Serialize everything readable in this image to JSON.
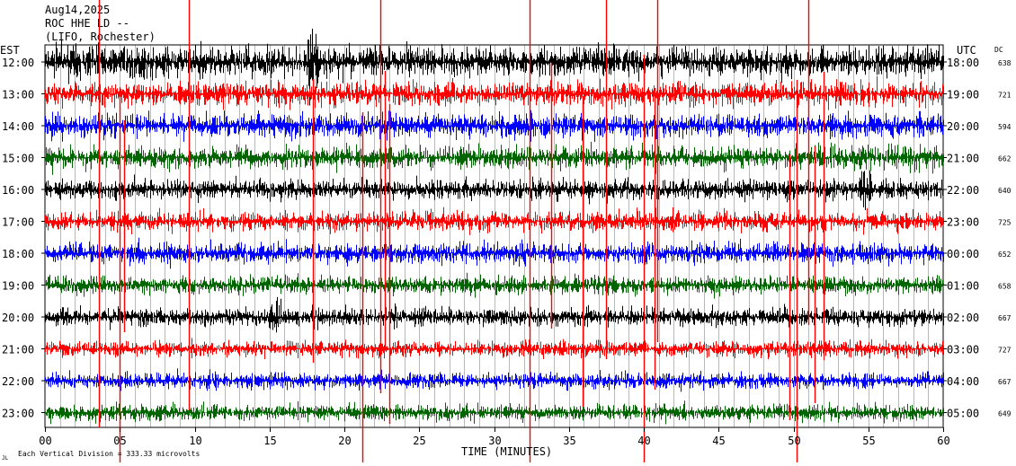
{
  "header": {
    "date": "Aug14,2025",
    "station": "ROC HHE LD --",
    "location": "(LIFO, Rochester)"
  },
  "axes": {
    "left_title": "EST",
    "right_title": "UTC",
    "dc_title": "DC",
    "x_title": "TIME (MINUTES)",
    "footer_left": "Each Vertical Division = 333.33 microvolts",
    "corner_mark": "JL"
  },
  "chart_data": {
    "type": "line",
    "title": "Aug14,2025",
    "xlabel": "TIME (MINUTES)",
    "xlim": [
      0,
      60
    ],
    "x_ticks": [
      0,
      5,
      10,
      15,
      20,
      25,
      30,
      35,
      40,
      45,
      50,
      55,
      60
    ],
    "x_tick_labels": [
      "00",
      "05",
      "10",
      "15",
      "20",
      "25",
      "30",
      "35",
      "40",
      "45",
      "50",
      "55",
      "60"
    ],
    "colors": [
      "#000000",
      "#ff0000",
      "#0000ff",
      "#006400"
    ],
    "rows": [
      {
        "est": "12:00",
        "utc": "18:00",
        "dc": "638",
        "color": "#000000",
        "amp": 1.5
      },
      {
        "est": "13:00",
        "utc": "19:00",
        "dc": "721",
        "color": "#ff0000",
        "amp": 1.2
      },
      {
        "est": "14:00",
        "utc": "20:00",
        "dc": "594",
        "color": "#0000ff",
        "amp": 1.2
      },
      {
        "est": "15:00",
        "utc": "21:00",
        "dc": "662",
        "color": "#006400",
        "amp": 1.1
      },
      {
        "est": "16:00",
        "utc": "22:00",
        "dc": "640",
        "color": "#000000",
        "amp": 1.0
      },
      {
        "est": "17:00",
        "utc": "23:00",
        "dc": "725",
        "color": "#ff0000",
        "amp": 1.0
      },
      {
        "est": "18:00",
        "utc": "00:00",
        "dc": "652",
        "color": "#0000ff",
        "amp": 1.0
      },
      {
        "est": "19:00",
        "utc": "01:00",
        "dc": "658",
        "color": "#006400",
        "amp": 0.9
      },
      {
        "est": "20:00",
        "utc": "02:00",
        "dc": "667",
        "color": "#000000",
        "amp": 0.9
      },
      {
        "est": "21:00",
        "utc": "03:00",
        "dc": "727",
        "color": "#ff0000",
        "amp": 0.8
      },
      {
        "est": "22:00",
        "utc": "04:00",
        "dc": "667",
        "color": "#0000ff",
        "amp": 0.8
      },
      {
        "est": "23:00",
        "utc": "05:00",
        "dc": "649",
        "color": "#006400",
        "amp": 0.8
      }
    ],
    "spikes_minutes": [
      3.6,
      5.0,
      5.3,
      9.6,
      17.9,
      21.2,
      22.4,
      22.7,
      23.0,
      32.4,
      33.8,
      35.9,
      37.5,
      40.0,
      40.7,
      40.9,
      49.7,
      50.2,
      51.0,
      51.4,
      52.0
    ],
    "grid": true
  }
}
